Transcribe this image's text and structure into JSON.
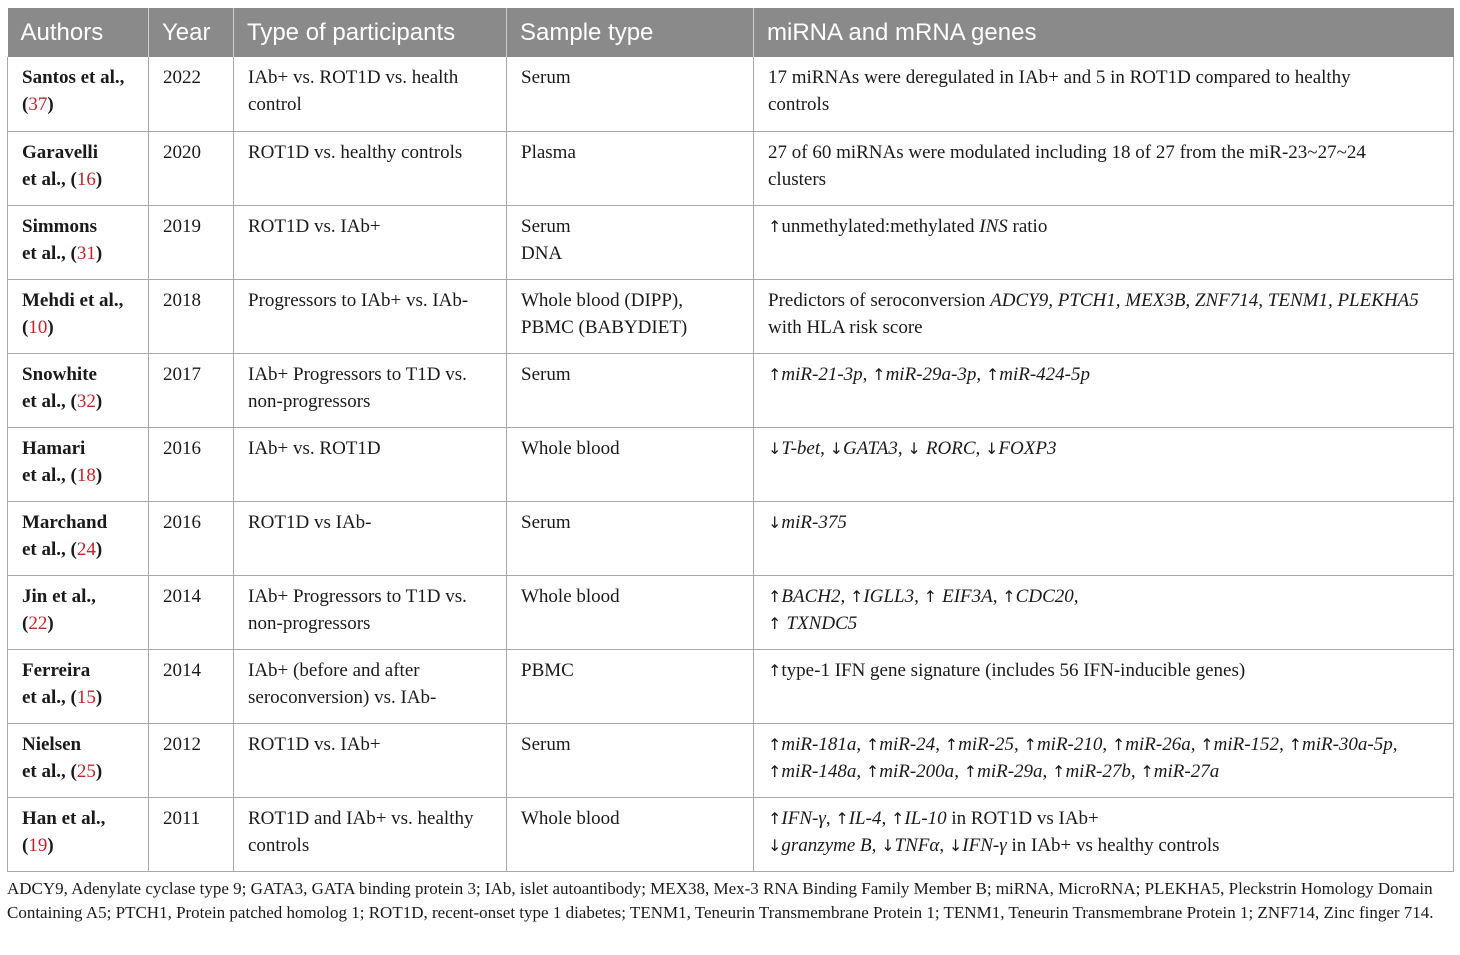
{
  "headers": [
    "Authors",
    "Year",
    "Type of participants",
    "Sample type",
    "miRNA and mRNA genes"
  ],
  "rows": [
    {
      "author_1": "Santos et al.,",
      "author_2": "(",
      "ref": "37",
      "author_3": ")",
      "year": "2022",
      "participants_1": "IAb+ vs. ROT1D vs. health",
      "participants_2": "control",
      "sample_1": "Serum",
      "sample_2": "",
      "genes_1": "17 miRNAs were deregulated in IAb+ and 5 in ROT1D compared to healthy",
      "genes_2": "controls"
    },
    {
      "author_1": "Garavelli",
      "author_2": "et al., (",
      "ref": "16",
      "author_3": ")",
      "year": "2020",
      "participants_1": "ROT1D vs. healthy controls",
      "participants_2": "",
      "sample_1": "Plasma",
      "sample_2": "",
      "genes_1": "27 of 60 miRNAs were modulated including 18 of 27 from the miR-23~27~24",
      "genes_2": "clusters"
    },
    {
      "author_1": "Simmons",
      "author_2": "et al., (",
      "ref": "31",
      "author_3": ")",
      "year": "2019",
      "participants_1": "ROT1D vs. IAb+",
      "participants_2": "",
      "sample_1": "Serum",
      "sample_2": "DNA"
    },
    {
      "author_1": "Mehdi et al.,",
      "author_2": "(",
      "ref": "10",
      "author_3": ")",
      "year": "2018",
      "participants_1": "Progressors to IAb+ vs. IAb-",
      "participants_2": "",
      "sample_1": "Whole blood (DIPP),",
      "sample_2": "PBMC (BABYDIET)"
    },
    {
      "author_1": "Snowhite",
      "author_2": "et al., (",
      "ref": "32",
      "author_3": ")",
      "year": "2017",
      "participants_1": "IAb+ Progressors to T1D vs.",
      "participants_2": "non-progressors",
      "sample_1": "Serum",
      "sample_2": ""
    },
    {
      "author_1": "Hamari",
      "author_2": "et al., (",
      "ref": "18",
      "author_3": ")",
      "year": "2016",
      "participants_1": "IAb+ vs. ROT1D",
      "participants_2": "",
      "sample_1": "Whole blood",
      "sample_2": ""
    },
    {
      "author_1": "Marchand",
      "author_2": "et al., (",
      "ref": "24",
      "author_3": ")",
      "year": "2016",
      "participants_1": "ROT1D vs IAb-",
      "participants_2": "",
      "sample_1": "Serum",
      "sample_2": ""
    },
    {
      "author_1": "Jin et al.,",
      "author_2": "(",
      "ref": "22",
      "author_3": ")",
      "year": "2014",
      "participants_1": "IAb+ Progressors to T1D vs.",
      "participants_2": "non-progressors",
      "sample_1": "Whole blood",
      "sample_2": ""
    },
    {
      "author_1": "Ferreira",
      "author_2": "et al., (",
      "ref": "15",
      "author_3": ")",
      "year": "2014",
      "participants_1": "IAb+ (before and after",
      "participants_2": "seroconversion) vs. IAb-",
      "sample_1": "PBMC",
      "sample_2": ""
    },
    {
      "author_1": "Nielsen",
      "author_2": "et al., (",
      "ref": "25",
      "author_3": ")",
      "year": "2012",
      "participants_1": "ROT1D vs. IAb+",
      "participants_2": "",
      "sample_1": "Serum",
      "sample_2": ""
    },
    {
      "author_1": "Han et al.,",
      "author_2": "(",
      "ref": "19",
      "author_3": ")",
      "year": "2011",
      "participants_1": "ROT1D and IAb+ vs. healthy",
      "participants_2": "controls",
      "sample_1": "Whole blood",
      "sample_2": ""
    }
  ],
  "genes": {
    "r3_a": "↑",
    "r3_b": "unmethylated:methylated ",
    "r3_c": "INS",
    "r3_d": " ratio",
    "r4_a": "Predictors of seroconversion ",
    "r4_b": "ADCY9, PTCH1, MEX3B, ZNF714, TENM1, PLEKHA5",
    "r4_c": "with HLA risk score",
    "r5": [
      "↑",
      "miR-21-3p",
      ", ",
      "↑",
      "miR-29a-3p",
      ", ",
      "↑",
      "miR-424-5p"
    ],
    "r6": [
      "↓",
      "T-bet",
      ", ",
      "↓",
      "GATA3",
      ", ",
      "↓ ",
      "RORC",
      ", ",
      "↓",
      "FOXP3"
    ],
    "r7": [
      "↓",
      "miR-375"
    ],
    "r8_line1": [
      "↑",
      "BACH2",
      ", ",
      "↑",
      "IGLL3",
      ", ",
      "↑ ",
      "EIF3A",
      ", ",
      "↑",
      "CDC20",
      ","
    ],
    "r8_line2": [
      "↑ ",
      "TXNDC5"
    ],
    "r9": [
      "↑",
      "type-1 IFN gene signature (includes 56 IFN-inducible genes)"
    ],
    "r10_line1": [
      "↑",
      "miR-181a",
      ", ",
      "↑",
      "miR-24",
      ", ",
      "↑",
      "miR-25",
      ", ",
      "↑",
      "miR-210",
      ", ",
      "↑",
      "miR-26a",
      ", ",
      "↑",
      "miR-152",
      ", ",
      "↑",
      "miR-30a-5p",
      ","
    ],
    "r10_line2": [
      "↑",
      "miR-148a",
      ", ",
      "↑",
      "miR-200a",
      ", ",
      "↑",
      "miR-29a",
      ", ",
      "↑",
      "miR-27b",
      ", ",
      "↑",
      "miR-27a"
    ],
    "r11_line1": [
      "↑",
      "IFN-γ",
      ", ",
      "↑",
      "IL-4",
      ", ",
      "↑",
      "IL-10",
      " in ROT1D vs IAb+"
    ],
    "r11_line2": [
      "↓",
      "granzyme B",
      ", ",
      "↓",
      "TNFα",
      ", ",
      "↓",
      "IFN-γ",
      " in IAb+ vs healthy controls"
    ]
  },
  "footnote": "ADCY9, Adenylate cyclase type 9; GATA3, GATA binding protein 3; IAb, islet autoantibody; MEX38, Mex-3 RNA Binding Family Member B; miRNA, MicroRNA; PLEKHA5, Pleckstrin Homology Domain Containing A5; PTCH1, Protein patched homolog 1; ROT1D, recent-onset type 1 diabetes; TENM1, Teneurin Transmembrane Protein 1; TENM1, Teneurin Transmembrane Protein 1; ZNF714, Zinc finger 714."
}
